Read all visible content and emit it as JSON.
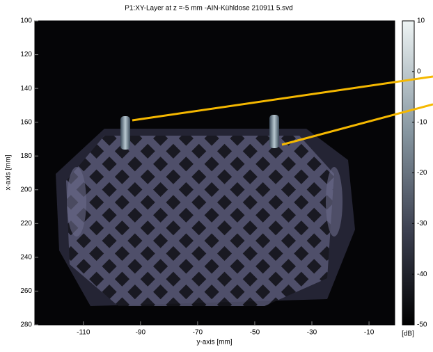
{
  "chart_data": {
    "type": "heatmap",
    "title": "P1:XY-Layer at z =-5  mm  -AIN-Kühldose 210911 5.svd",
    "xlabel": "y-axis  [mm]",
    "ylabel": "x-axis  [mm]",
    "xlim": [
      -127,
      -1
    ],
    "xticks": [
      -110,
      -90,
      -70,
      -50,
      -30,
      -10
    ],
    "ylim": [
      100,
      280
    ],
    "yticks": [
      100,
      120,
      140,
      160,
      180,
      200,
      220,
      240,
      260,
      280
    ],
    "y_inverted": true,
    "colorbar": {
      "clim": [
        -50,
        10
      ],
      "ticks": [
        10,
        0,
        -10,
        -20,
        -30,
        -40,
        -50
      ],
      "label": "[dB]"
    }
  }
}
